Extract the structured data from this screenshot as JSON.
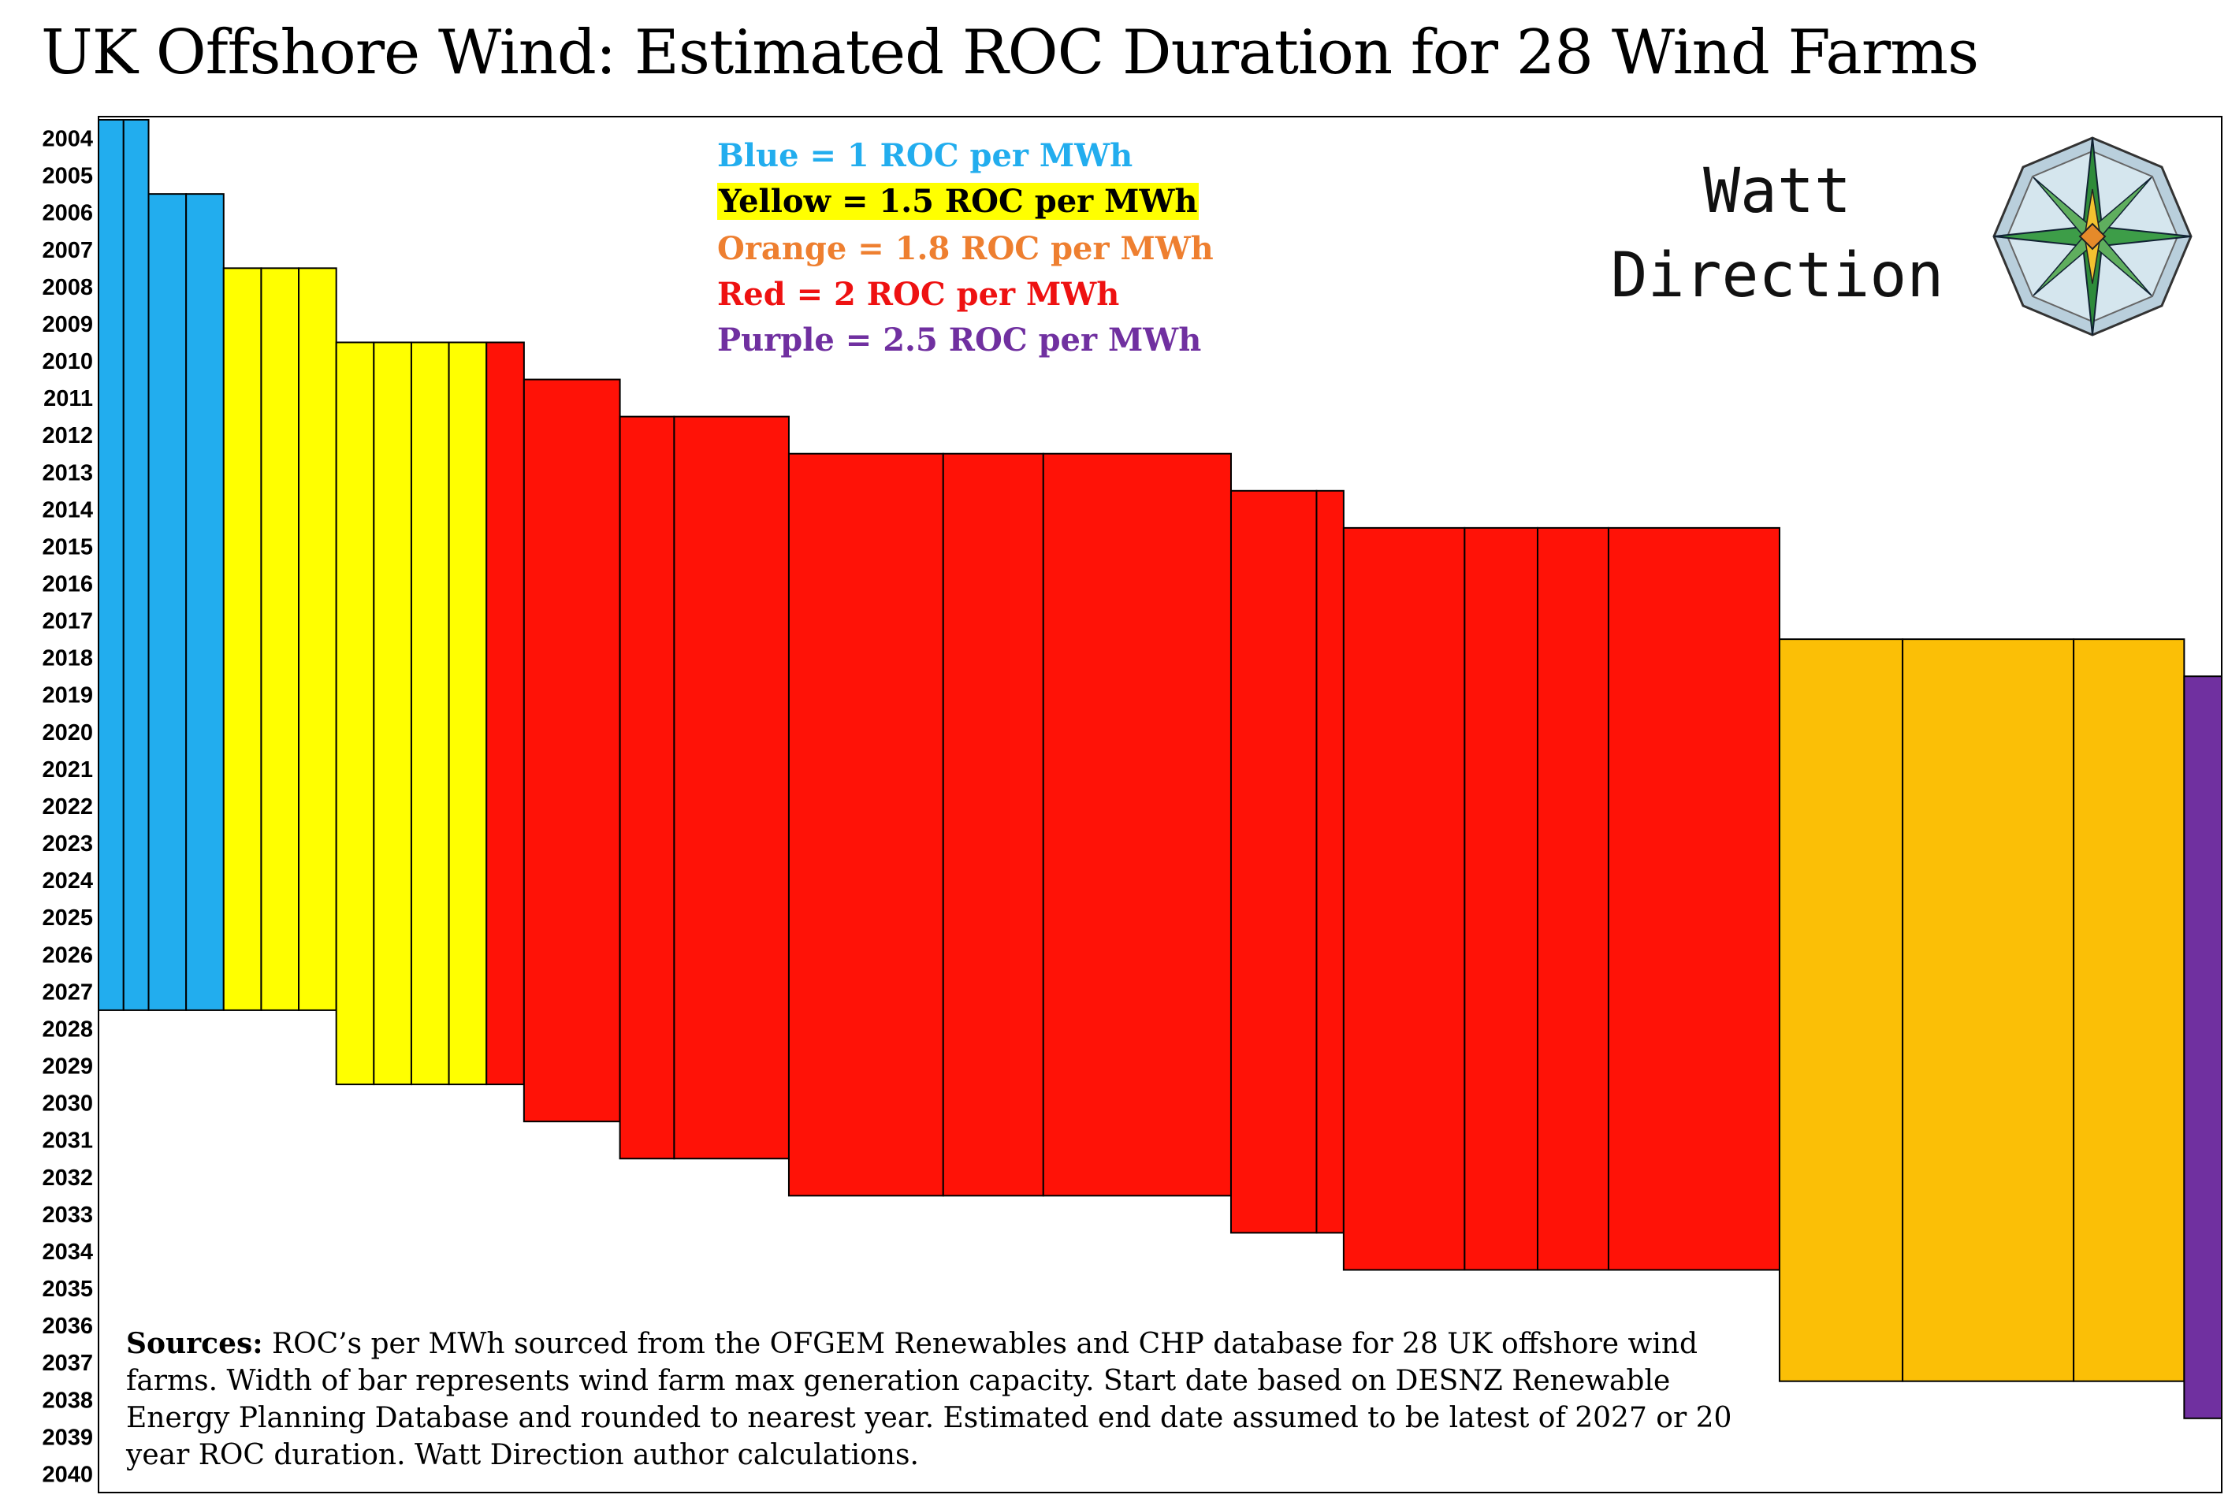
{
  "title": "UK Offshore Wind: Estimated ROC Duration for 28 Wind Farms",
  "legend": [
    {
      "text": "Blue = 1 ROC per MWh",
      "color": "#22ADEE",
      "highlight": null
    },
    {
      "text": "Yellow = 1.5 ROC per MWh",
      "color": "#000000",
      "highlight": "#FFFF00"
    },
    {
      "text": "Orange = 1.8 ROC per MWh",
      "color": "#EE7F30",
      "highlight": null
    },
    {
      "text": "Red = 2 ROC per MWh",
      "color": "#EE1111",
      "highlight": null
    },
    {
      "text": "Purple =  2.5 ROC per MWh",
      "color": "#7030A0",
      "highlight": null
    }
  ],
  "logo": {
    "line1": "Watt",
    "line2": "Direction",
    "icon": "compass-rose-icon"
  },
  "sources": {
    "label": "Sources:",
    "text": " ROC’s per MWh sourced from the OFGEM Renewables and CHP database for 28 UK offshore wind farms. Width of bar represents wind farm max generation capacity. Start date based on DESNZ Renewable Energy Planning Database and rounded to nearest year. Estimated end date assumed to be latest of 2027 or 20 year ROC duration. Watt Direction author calculations."
  },
  "chart_data": {
    "type": "bar",
    "orientation": "variable-width vertical spans",
    "y_axis_ticks": [
      2004,
      2005,
      2006,
      2007,
      2008,
      2009,
      2010,
      2011,
      2012,
      2013,
      2014,
      2015,
      2016,
      2017,
      2018,
      2019,
      2020,
      2021,
      2022,
      2023,
      2024,
      2025,
      2026,
      2027,
      2028,
      2029,
      2030,
      2031,
      2032,
      2033,
      2034,
      2035,
      2036,
      2037,
      2038,
      2039,
      2040
    ],
    "y_direction": "inverted",
    "ylim": [
      2003.5,
      2040.5
    ],
    "colors": {
      "1": "#22ADEE",
      "1.5": "#FFFF00",
      "1.8": "#FBBF06",
      "2": "#FF1207",
      "2.5": "#7030A0"
    },
    "farms": [
      {
        "roc": 1,
        "start": 2004,
        "end": 2027,
        "capacity": 60
      },
      {
        "roc": 1,
        "start": 2004,
        "end": 2027,
        "capacity": 60
      },
      {
        "roc": 1,
        "start": 2006,
        "end": 2027,
        "capacity": 90
      },
      {
        "roc": 1,
        "start": 2006,
        "end": 2027,
        "capacity": 90
      },
      {
        "roc": 1.5,
        "start": 2008,
        "end": 2027,
        "capacity": 90
      },
      {
        "roc": 1.5,
        "start": 2008,
        "end": 2027,
        "capacity": 90
      },
      {
        "roc": 1.5,
        "start": 2008,
        "end": 2027,
        "capacity": 90
      },
      {
        "roc": 1.5,
        "start": 2010,
        "end": 2029,
        "capacity": 90
      },
      {
        "roc": 1.5,
        "start": 2010,
        "end": 2029,
        "capacity": 90
      },
      {
        "roc": 1.5,
        "start": 2010,
        "end": 2029,
        "capacity": 90
      },
      {
        "roc": 1.5,
        "start": 2010,
        "end": 2029,
        "capacity": 90
      },
      {
        "roc": 2,
        "start": 2010,
        "end": 2029,
        "capacity": 90
      },
      {
        "roc": 2,
        "start": 2011,
        "end": 2030,
        "capacity": 230
      },
      {
        "roc": 2,
        "start": 2012,
        "end": 2031,
        "capacity": 130
      },
      {
        "roc": 2,
        "start": 2012,
        "end": 2031,
        "capacity": 275
      },
      {
        "roc": 2,
        "start": 2013,
        "end": 2032,
        "capacity": 370
      },
      {
        "roc": 2,
        "start": 2013,
        "end": 2032,
        "capacity": 240
      },
      {
        "roc": 2,
        "start": 2013,
        "end": 2032,
        "capacity": 450
      },
      {
        "roc": 2,
        "start": 2014,
        "end": 2033,
        "capacity": 205
      },
      {
        "roc": 2,
        "start": 2014,
        "end": 2033,
        "capacity": 65
      },
      {
        "roc": 2,
        "start": 2015,
        "end": 2034,
        "capacity": 290
      },
      {
        "roc": 2,
        "start": 2015,
        "end": 2034,
        "capacity": 175
      },
      {
        "roc": 2,
        "start": 2015,
        "end": 2034,
        "capacity": 170
      },
      {
        "roc": 2,
        "start": 2015,
        "end": 2034,
        "capacity": 410
      },
      {
        "roc": 1.8,
        "start": 2018,
        "end": 2037,
        "capacity": 295
      },
      {
        "roc": 1.8,
        "start": 2018,
        "end": 2037,
        "capacity": 410
      },
      {
        "roc": 1.8,
        "start": 2018,
        "end": 2037,
        "capacity": 265
      },
      {
        "roc": 2.5,
        "start": 2019,
        "end": 2038,
        "capacity": 90
      }
    ]
  }
}
